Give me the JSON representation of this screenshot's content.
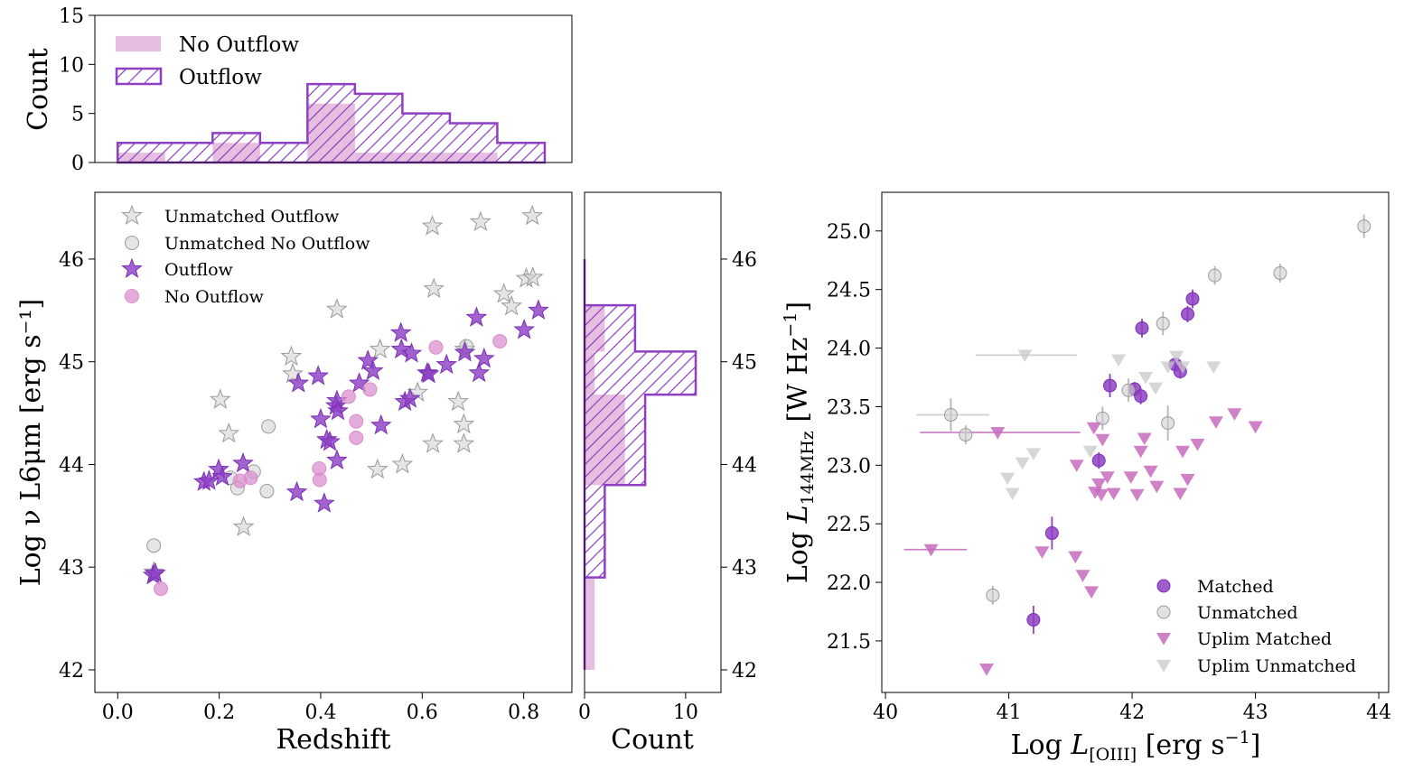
{
  "colors": {
    "outflow": "#8e3fc4",
    "outflow_edge": "#7b2fb5",
    "no_outflow": "#d98ccc",
    "unmatched": "#cfcfcf",
    "unmatched_edge": "#9a9a9a",
    "hist_fill": "#e6bfe0",
    "uplim_matched": "#c76bbd",
    "uplim_unmatched": "#c8c8c8"
  },
  "chart_data": [
    {
      "id": "hist_top",
      "type": "histogram",
      "ylabel": "Count",
      "xlim": [
        -0.045,
        0.895
      ],
      "ylim": [
        0,
        15
      ],
      "y_ticks": [
        0,
        5,
        10,
        15
      ],
      "y_tick_labels": [
        "0",
        "5",
        "10",
        "15"
      ],
      "legend": {
        "placement": "upper-left",
        "entries": [
          "No Outflow",
          "Outflow"
        ]
      },
      "bin_edges": [
        0.0,
        0.0935,
        0.187,
        0.2805,
        0.374,
        0.4675,
        0.561,
        0.6545,
        0.748,
        0.8415
      ],
      "series": [
        {
          "name": "No Outflow",
          "style": "filled",
          "counts": [
            1,
            0,
            2,
            0,
            6,
            1,
            1,
            1,
            0
          ]
        },
        {
          "name": "Outflow",
          "style": "hatched-step",
          "counts": [
            2,
            2,
            3,
            2,
            8,
            7,
            5,
            4,
            2
          ]
        }
      ]
    },
    {
      "id": "scatter_main",
      "type": "scatter",
      "xlabel": "Redshift",
      "ylabel": "Log ν L6μm [erg s⁻¹]",
      "xlim": [
        -0.045,
        0.895
      ],
      "ylim": [
        41.78,
        46.65
      ],
      "x_ticks": [
        0.0,
        0.2,
        0.4,
        0.6,
        0.8
      ],
      "x_tick_labels": [
        "0.0",
        "0.2",
        "0.4",
        "0.6",
        "0.8"
      ],
      "y_ticks": [
        42,
        43,
        44,
        45,
        46
      ],
      "y_tick_labels": [
        "42",
        "43",
        "44",
        "45",
        "46"
      ],
      "legend": {
        "placement": "upper-left",
        "entries": [
          "Unmatched Outflow",
          "Unmatched No Outflow",
          "Outflow",
          "No Outflow"
        ]
      },
      "series": [
        {
          "name": "Unmatched Outflow",
          "marker": "star",
          "points": [
            [
              0.071,
              42.95
            ],
            [
              0.202,
              44.63
            ],
            [
              0.219,
              44.3
            ],
            [
              0.248,
              43.39
            ],
            [
              0.342,
              45.05
            ],
            [
              0.345,
              44.88
            ],
            [
              0.432,
              45.51
            ],
            [
              0.517,
              45.12
            ],
            [
              0.512,
              43.95
            ],
            [
              0.561,
              44.0
            ],
            [
              0.591,
              44.7
            ],
            [
              0.62,
              46.32
            ],
            [
              0.623,
              45.71
            ],
            [
              0.621,
              44.2
            ],
            [
              0.671,
              44.61
            ],
            [
              0.682,
              44.2
            ],
            [
              0.682,
              44.39
            ],
            [
              0.684,
              45.12
            ],
            [
              0.715,
              46.36
            ],
            [
              0.761,
              45.66
            ],
            [
              0.776,
              45.54
            ],
            [
              0.817,
              46.42
            ],
            [
              0.805,
              45.81
            ],
            [
              0.818,
              45.82
            ]
          ]
        },
        {
          "name": "Unmatched No Outflow",
          "marker": "circle",
          "points": [
            [
              0.071,
              43.21
            ],
            [
              0.222,
              43.87
            ],
            [
              0.236,
              43.77
            ],
            [
              0.268,
              43.93
            ],
            [
              0.294,
              43.74
            ],
            [
              0.297,
              44.37
            ],
            [
              0.687,
              45.15
            ]
          ]
        },
        {
          "name": "Outflow",
          "marker": "star",
          "points": [
            [
              0.07,
              42.92
            ],
            [
              0.074,
              42.94
            ],
            [
              0.17,
              43.83
            ],
            [
              0.18,
              43.84
            ],
            [
              0.199,
              43.95
            ],
            [
              0.206,
              43.88
            ],
            [
              0.247,
              44.01
            ],
            [
              0.353,
              43.73
            ],
            [
              0.356,
              44.79
            ],
            [
              0.395,
              44.86
            ],
            [
              0.4,
              44.44
            ],
            [
              0.407,
              43.62
            ],
            [
              0.412,
              44.24
            ],
            [
              0.418,
              44.22
            ],
            [
              0.43,
              44.57
            ],
            [
              0.432,
              44.62
            ],
            [
              0.432,
              44.04
            ],
            [
              0.434,
              44.52
            ],
            [
              0.476,
              44.79
            ],
            [
              0.493,
              45.01
            ],
            [
              0.503,
              44.91
            ],
            [
              0.519,
              44.38
            ],
            [
              0.558,
              45.28
            ],
            [
              0.559,
              45.12
            ],
            [
              0.566,
              44.61
            ],
            [
              0.576,
              44.64
            ],
            [
              0.579,
              45.08
            ],
            [
              0.61,
              44.89
            ],
            [
              0.613,
              44.88
            ],
            [
              0.648,
              44.97
            ],
            [
              0.684,
              45.09
            ],
            [
              0.707,
              45.43
            ],
            [
              0.712,
              44.89
            ],
            [
              0.722,
              45.03
            ],
            [
              0.801,
              45.31
            ],
            [
              0.829,
              45.5
            ]
          ]
        },
        {
          "name": "No Outflow",
          "marker": "circle",
          "points": [
            [
              0.085,
              42.79
            ],
            [
              0.241,
              43.84
            ],
            [
              0.262,
              43.87
            ],
            [
              0.397,
              43.96
            ],
            [
              0.398,
              43.85
            ],
            [
              0.455,
              44.66
            ],
            [
              0.47,
              44.42
            ],
            [
              0.47,
              44.26
            ],
            [
              0.497,
              44.73
            ],
            [
              0.627,
              45.14
            ],
            [
              0.753,
              45.2
            ]
          ]
        }
      ]
    },
    {
      "id": "hist_right",
      "type": "histogram",
      "orientation": "horizontal",
      "xlabel": "Count",
      "xlim": [
        0,
        13.5
      ],
      "ylim": [
        41.78,
        46.65
      ],
      "x_ticks": [
        0,
        10
      ],
      "x_tick_labels": [
        "0",
        "10"
      ],
      "y_ticks": [
        42,
        43,
        44,
        45,
        46
      ],
      "y_tick_labels": [
        "42",
        "43",
        "44",
        "45",
        "46"
      ],
      "bin_edges": [
        42.0,
        42.9,
        43.8,
        44.68,
        45.1,
        45.55,
        46.0
      ],
      "series": [
        {
          "name": "No Outflow",
          "style": "filled",
          "counts": [
            1,
            0,
            4,
            1,
            2,
            0
          ]
        },
        {
          "name": "Outflow",
          "style": "hatched-step",
          "counts": [
            0,
            2,
            6,
            11,
            5,
            0
          ]
        }
      ]
    },
    {
      "id": "scatter_right",
      "type": "scatter",
      "xlabel": "Log L[OIII] [erg s⁻¹]",
      "ylabel": "Log L144MHz [W Hz⁻¹]",
      "xlim": [
        39.97,
        44.08
      ],
      "ylim": [
        21.06,
        25.33
      ],
      "x_ticks": [
        40,
        41,
        42,
        43,
        44
      ],
      "x_tick_labels": [
        "40",
        "41",
        "42",
        "43",
        "44"
      ],
      "y_ticks": [
        21.5,
        22.0,
        22.5,
        23.0,
        23.5,
        24.0,
        24.5,
        25.0
      ],
      "y_tick_labels": [
        "21.5",
        "22.0",
        "22.5",
        "23.0",
        "23.5",
        "24.0",
        "24.5",
        "25.0"
      ],
      "legend": {
        "placement": "lower-right",
        "entries": [
          "Matched",
          "Unmatched",
          "Uplim Matched",
          "Uplim Unmatched"
        ]
      },
      "series": [
        {
          "name": "Matched",
          "marker": "circle",
          "points": [
            [
              41.2,
              21.68,
              0.12
            ],
            [
              41.35,
              22.42,
              0.14
            ],
            [
              41.73,
              23.04,
              0.07
            ],
            [
              41.82,
              23.68,
              0.1
            ],
            [
              42.02,
              23.65,
              0.06
            ],
            [
              42.07,
              23.59,
              0.07
            ],
            [
              42.08,
              24.17,
              0.08
            ],
            [
              42.35,
              23.86,
              0.05
            ],
            [
              42.39,
              23.8,
              0.06
            ],
            [
              42.45,
              24.29,
              0.07
            ],
            [
              42.49,
              24.42,
              0.08
            ]
          ]
        },
        {
          "name": "Unmatched",
          "marker": "circle",
          "points": [
            [
              40.53,
              23.43,
              0.14
            ],
            [
              40.65,
              23.26,
              0.08
            ],
            [
              40.87,
              21.89,
              0.08
            ],
            [
              41.76,
              23.4,
              0.1
            ],
            [
              41.97,
              23.64,
              0.1
            ],
            [
              42.25,
              24.21,
              0.1
            ],
            [
              42.29,
              23.36,
              0.15
            ],
            [
              42.67,
              24.62,
              0.08
            ],
            [
              43.2,
              24.64,
              0.08
            ],
            [
              43.88,
              25.04,
              0.1
            ]
          ]
        },
        {
          "name": "Uplim Matched",
          "marker": "triangle-down",
          "points": [
            [
              40.37,
              22.28
            ],
            [
              40.82,
              21.26
            ],
            [
              40.91,
              23.28
            ],
            [
              41.27,
              22.26
            ],
            [
              41.54,
              22.22
            ],
            [
              41.55,
              23.0
            ],
            [
              41.6,
              22.06
            ],
            [
              41.67,
              21.92
            ],
            [
              41.69,
              23.32
            ],
            [
              41.7,
              22.77
            ],
            [
              41.73,
              22.84
            ],
            [
              41.75,
              22.75
            ],
            [
              41.76,
              23.22
            ],
            [
              41.8,
              22.9
            ],
            [
              41.85,
              22.76
            ],
            [
              41.99,
              22.9
            ],
            [
              42.04,
              22.75
            ],
            [
              42.07,
              23.12
            ],
            [
              42.1,
              23.23
            ],
            [
              42.15,
              22.95
            ],
            [
              42.2,
              22.82
            ],
            [
              42.39,
              22.76
            ],
            [
              42.41,
              23.12
            ],
            [
              42.45,
              22.88
            ],
            [
              42.53,
              23.18
            ],
            [
              42.68,
              23.37
            ],
            [
              42.83,
              23.44
            ],
            [
              43.0,
              23.33
            ]
          ]
        },
        {
          "name": "Uplim Unmatched",
          "marker": "triangle-down",
          "points": [
            [
              40.99,
              22.89
            ],
            [
              41.03,
              22.76
            ],
            [
              41.11,
              23.02
            ],
            [
              41.2,
              23.1
            ],
            [
              41.13,
              23.94
            ],
            [
              41.66,
              23.12
            ],
            [
              41.89,
              23.9
            ],
            [
              42.11,
              23.75
            ],
            [
              42.19,
              23.66
            ],
            [
              42.29,
              23.84
            ],
            [
              42.36,
              23.93
            ],
            [
              42.41,
              23.84
            ],
            [
              42.66,
              23.84
            ]
          ]
        }
      ],
      "x_error_bars": [
        {
          "series": "Uplim Unmatched",
          "y": 23.94,
          "x_range": [
            40.73,
            41.55
          ]
        },
        {
          "series": "Unmatched",
          "y": 23.43,
          "x_range": [
            40.25,
            40.84
          ]
        },
        {
          "series": "Uplim Matched",
          "y": 23.28,
          "x_range": [
            40.28,
            41.58
          ]
        },
        {
          "series": "Uplim Matched",
          "y": 22.28,
          "x_range": [
            40.15,
            40.66
          ]
        }
      ]
    }
  ]
}
